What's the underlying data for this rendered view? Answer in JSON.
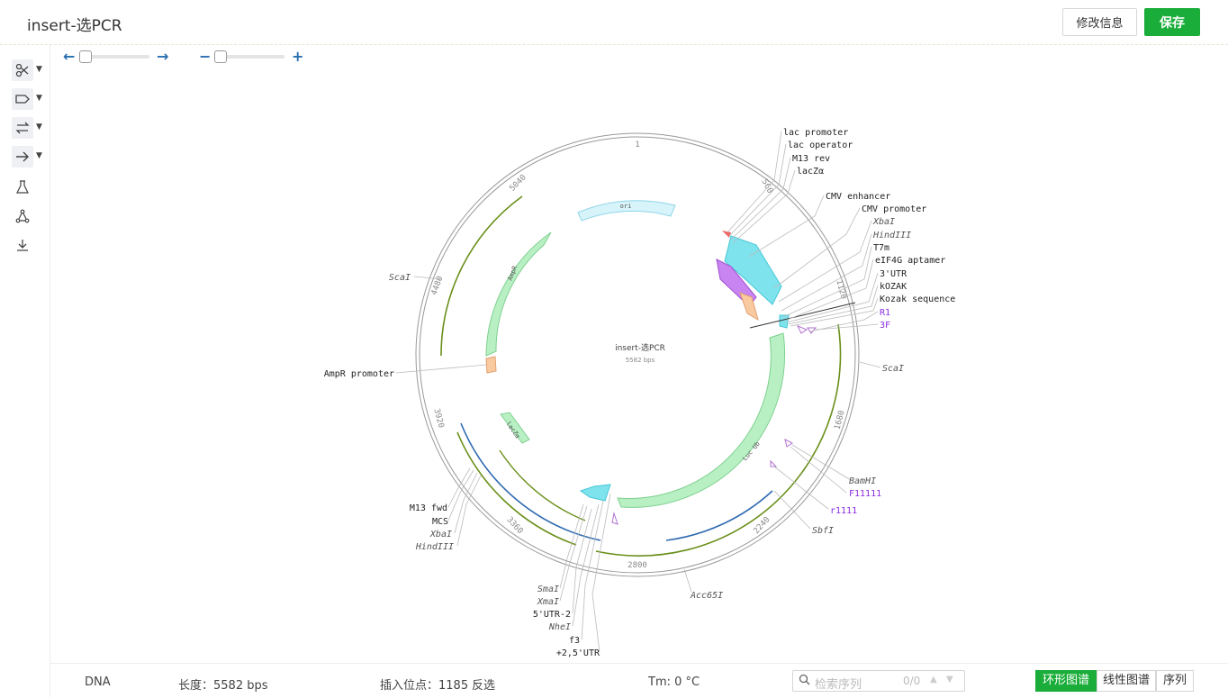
{
  "header": {
    "title": "insert-选PCR",
    "edit_label": "修改信息",
    "save_label": "保存"
  },
  "toolbar": {
    "tools": [
      "scissors-icon",
      "tag-icon",
      "swap-icon",
      "arrow-right-icon",
      "flask-icon",
      "network-icon",
      "download-icon"
    ]
  },
  "map": {
    "name": "insert-选PCR",
    "length_label": "5582 bps",
    "ticks": [
      "1",
      "560",
      "1120",
      "1680",
      "2240",
      "2800",
      "3360",
      "3920",
      "4480",
      "5040"
    ],
    "features_in": [
      "ori",
      "AmpR",
      "lacZα",
      "Luc Ub"
    ],
    "labels_right": [
      "lac promoter",
      "lac operator",
      "M13 rev",
      "lacZα",
      "CMV enhancer",
      "CMV promoter",
      "XbaI",
      "HindIII",
      "T7m",
      "eIF4G aptamer",
      "3'UTR",
      "kOZAK",
      "Kozak sequence",
      "R1",
      "3F",
      "ScaI",
      "BamHI",
      "F11111",
      "r1111",
      "SbfI",
      "Acc65I"
    ],
    "labels_left": [
      "ScaI",
      "AmpR promoter",
      "M13 fwd",
      "MCS",
      "XbaI",
      "HindIII",
      "SmaI",
      "XmaI",
      "5'UTR-2",
      "NheI",
      "f3",
      "+2,5'UTR"
    ]
  },
  "footer": {
    "type": "DNA",
    "length": "长度：5582 bps",
    "insert": "插入位点：1185",
    "reverse": "反选",
    "tm": "Tm: 0 °C",
    "search_placeholder": "检索序列",
    "search_count": "0/0",
    "tabs": [
      "环形图谱",
      "线性图谱",
      "序列"
    ],
    "active_tab": "环形图谱"
  }
}
